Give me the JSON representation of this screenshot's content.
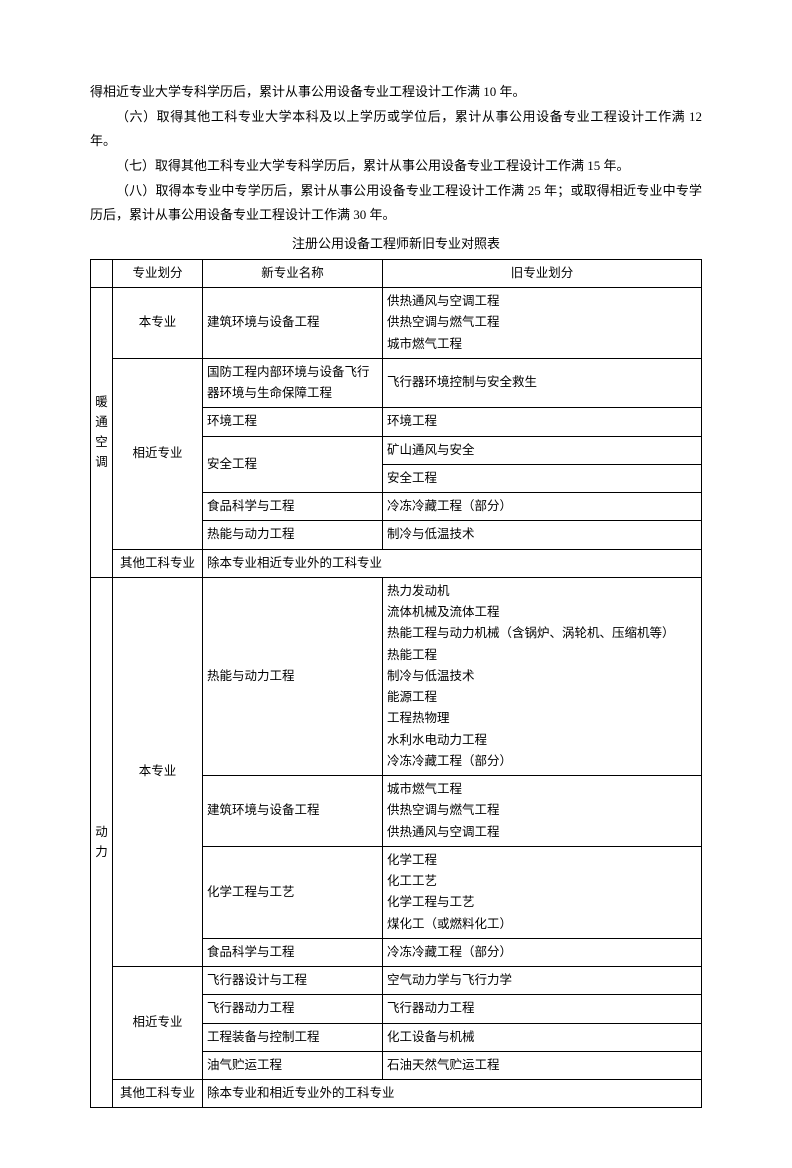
{
  "paragraphs": {
    "p1": "得相近专业大学专科学历后，累计从事公用设备专业工程设计工作满 10 年。",
    "p2": "（六）取得其他工科专业大学本科及以上学历或学位后，累计从事公用设备专业工程设计工作满 12 年。",
    "p3": "（七）取得其他工科专业大学专科学历后，累计从事公用设备专业工程设计工作满 15 年。",
    "p4": "（八）取得本专业中专学历后，累计从事公用设备专业工程设计工作满 25 年；或取得相近专业中专学历后，累计从事公用设备专业工程设计工作满 30 年。"
  },
  "table_title": "注册公用设备工程师新旧专业对照表",
  "headers": {
    "h1": "专业划分",
    "h2": "新专业名称",
    "h3": "旧专业划分"
  },
  "cat1": "暖通空调",
  "cat2": "动力",
  "c1": {
    "r1": {
      "div": "本专业",
      "new": "建筑环境与设备工程",
      "old1": "供热通风与空调工程",
      "old2": "供热空调与燃气工程",
      "old3": "城市燃气工程"
    },
    "r2": {
      "div": "相近专业",
      "new1": "国防工程内部环境与设备飞行器环境与生命保障工程",
      "old1": "飞行器环境控制与安全救生",
      "new2": "环境工程",
      "old2": "环境工程",
      "new3": "安全工程",
      "old3a": "矿山通风与安全",
      "old3b": "安全工程",
      "new4": "食品科学与工程",
      "old4": "冷冻冷藏工程（部分）",
      "new5": "热能与动力工程",
      "old5": "制冷与低温技术"
    },
    "r3": {
      "div": "其他工科专业",
      "new": "除本专业相近专业外的工科专业"
    }
  },
  "c2": {
    "r1": {
      "div": "本专业",
      "new1": "热能与动力工程",
      "old1a": "热力发动机",
      "old1b": "流体机械及流体工程",
      "old1c": "热能工程与动力机械（含锅炉、涡轮机、压缩机等）",
      "old1d": "热能工程",
      "old1e": "制冷与低温技术",
      "old1f": "能源工程",
      "old1g": "工程热物理",
      "old1h": "水利水电动力工程",
      "old1i": "冷冻冷藏工程（部分）",
      "new2": "建筑环境与设备工程",
      "old2a": "城市燃气工程",
      "old2b": "供热空调与燃气工程",
      "old2c": "供热通风与空调工程",
      "new3": "化学工程与工艺",
      "old3a": "化学工程",
      "old3b": "化工工艺",
      "old3c": "化学工程与工艺",
      "old3d": "煤化工（或燃料化工）",
      "new4": "食品科学与工程",
      "old4": "冷冻冷藏工程（部分）"
    },
    "r2": {
      "div": "相近专业",
      "new1": "飞行器设计与工程",
      "old1": "空气动力学与飞行力学",
      "new2": "飞行器动力工程",
      "old2": "飞行器动力工程",
      "new3": "工程装备与控制工程",
      "old3": "化工设备与机械",
      "new4": "油气贮运工程",
      "old4": "石油天然气贮运工程"
    },
    "r3": {
      "div": "其他工科专业",
      "new": "除本专业和相近专业外的工科专业"
    }
  }
}
